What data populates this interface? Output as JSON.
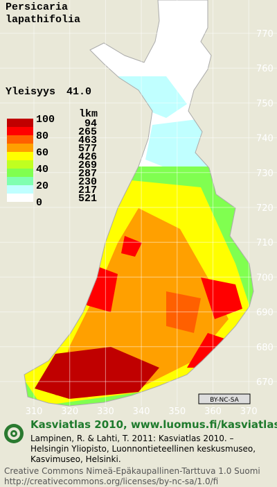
{
  "title": [
    "Persicaria",
    "lapathifolia"
  ],
  "frequency": {
    "label": "Yleisyys",
    "value": "41.0"
  },
  "legend": {
    "scale_labels": [
      "100",
      "80",
      "60",
      "40",
      "20",
      "0"
    ],
    "count_header": "lkm",
    "classes": [
      {
        "color": "#c00000",
        "count": "94"
      },
      {
        "color": "#ff0000",
        "count": "265"
      },
      {
        "color": "#ff6000",
        "count": "463"
      },
      {
        "color": "#ffa000",
        "count": "577"
      },
      {
        "color": "#ffff00",
        "count": "426"
      },
      {
        "color": "#c0ff20",
        "count": "269"
      },
      {
        "color": "#80ff50",
        "count": "287"
      },
      {
        "color": "#80ffb0",
        "count": "230"
      },
      {
        "color": "#c0ffff",
        "count": "217"
      },
      {
        "color": "#ffffff",
        "count": "521"
      }
    ]
  },
  "grid": {
    "y_labels": [
      "770",
      "760",
      "750",
      "740",
      "730",
      "720",
      "710",
      "700",
      "690",
      "680",
      "670"
    ],
    "x_labels": [
      "310",
      "320",
      "330",
      "340",
      "350",
      "360",
      "370"
    ]
  },
  "license_badge": "BY-NC-SA",
  "footer": {
    "heading": "Kasviatlas 2010, www.luomus.fi/kasviatlas",
    "citation": [
      "Lampinen, R. & Lahti, T. 2011: Kasviatlas 2010. –",
      "Helsingin Yliopisto, Luonnontieteellinen keskusmuseo,",
      "Kasvimuseo, Helsinki."
    ],
    "license": [
      "Creative Commons Nimeä-Epäkaupallinen-Tarttuva 1.0 Suomi",
      "http://creativecommons.org/licenses/by-nc-sa/1.0/fi"
    ]
  }
}
